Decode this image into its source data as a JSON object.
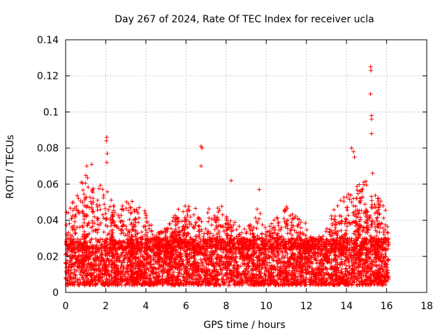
{
  "chart_data": {
    "type": "scatter",
    "title": "Day 267 of 2024, Rate Of TEC Index for receiver ucla",
    "xlabel": "GPS time / hours",
    "ylabel": "ROTI / TECUs",
    "xlim": [
      0,
      18
    ],
    "ylim": [
      0,
      0.14
    ],
    "xticks": [
      "0",
      "2",
      "4",
      "6",
      "8",
      "10",
      "12",
      "14",
      "16",
      "18"
    ],
    "yticks": [
      "0",
      "0.02",
      "0.04",
      "0.06",
      "0.08",
      "0.1",
      "0.12",
      "0.14"
    ],
    "grid": true,
    "marker": "+",
    "marker_color": "#ff0000",
    "grid_color": "#a0a0a0",
    "series": [
      {
        "name": "ROTI",
        "x_range": [
          0,
          16.1
        ],
        "baseline_mean": 0.015,
        "baseline_band": [
          0.004,
          0.03
        ],
        "envelope": [
          [
            0.0,
            0.045
          ],
          [
            0.3,
            0.05
          ],
          [
            0.7,
            0.06
          ],
          [
            1.0,
            0.065
          ],
          [
            1.5,
            0.058
          ],
          [
            2.0,
            0.062
          ],
          [
            2.5,
            0.045
          ],
          [
            3.0,
            0.055
          ],
          [
            3.5,
            0.05
          ],
          [
            4.0,
            0.045
          ],
          [
            4.5,
            0.032
          ],
          [
            5.0,
            0.036
          ],
          [
            5.5,
            0.045
          ],
          [
            6.0,
            0.05
          ],
          [
            6.5,
            0.048
          ],
          [
            7.0,
            0.045
          ],
          [
            7.5,
            0.05
          ],
          [
            8.0,
            0.046
          ],
          [
            8.5,
            0.04
          ],
          [
            9.0,
            0.035
          ],
          [
            9.5,
            0.05
          ],
          [
            10.0,
            0.035
          ],
          [
            10.5,
            0.042
          ],
          [
            11.0,
            0.048
          ],
          [
            11.5,
            0.042
          ],
          [
            12.0,
            0.038
          ],
          [
            12.5,
            0.03
          ],
          [
            13.0,
            0.035
          ],
          [
            13.5,
            0.05
          ],
          [
            14.0,
            0.055
          ],
          [
            14.5,
            0.06
          ],
          [
            15.0,
            0.062
          ],
          [
            15.5,
            0.055
          ],
          [
            16.0,
            0.045
          ],
          [
            16.1,
            0.03
          ]
        ],
        "peaks": [
          {
            "x": 1.05,
            "y": 0.07
          },
          {
            "x": 1.3,
            "y": 0.071
          },
          {
            "x": 2.05,
            "y": 0.086
          },
          {
            "x": 2.03,
            "y": 0.084
          },
          {
            "x": 2.07,
            "y": 0.077
          },
          {
            "x": 2.05,
            "y": 0.072
          },
          {
            "x": 6.75,
            "y": 0.081
          },
          {
            "x": 6.8,
            "y": 0.08
          },
          {
            "x": 6.75,
            "y": 0.07
          },
          {
            "x": 8.25,
            "y": 0.062
          },
          {
            "x": 9.65,
            "y": 0.057
          },
          {
            "x": 14.25,
            "y": 0.08
          },
          {
            "x": 14.35,
            "y": 0.078
          },
          {
            "x": 14.4,
            "y": 0.075
          },
          {
            "x": 15.2,
            "y": 0.125
          },
          {
            "x": 15.22,
            "y": 0.123
          },
          {
            "x": 15.2,
            "y": 0.11
          },
          {
            "x": 15.25,
            "y": 0.098
          },
          {
            "x": 15.25,
            "y": 0.096
          },
          {
            "x": 15.25,
            "y": 0.088
          },
          {
            "x": 15.3,
            "y": 0.066
          }
        ]
      }
    ]
  }
}
